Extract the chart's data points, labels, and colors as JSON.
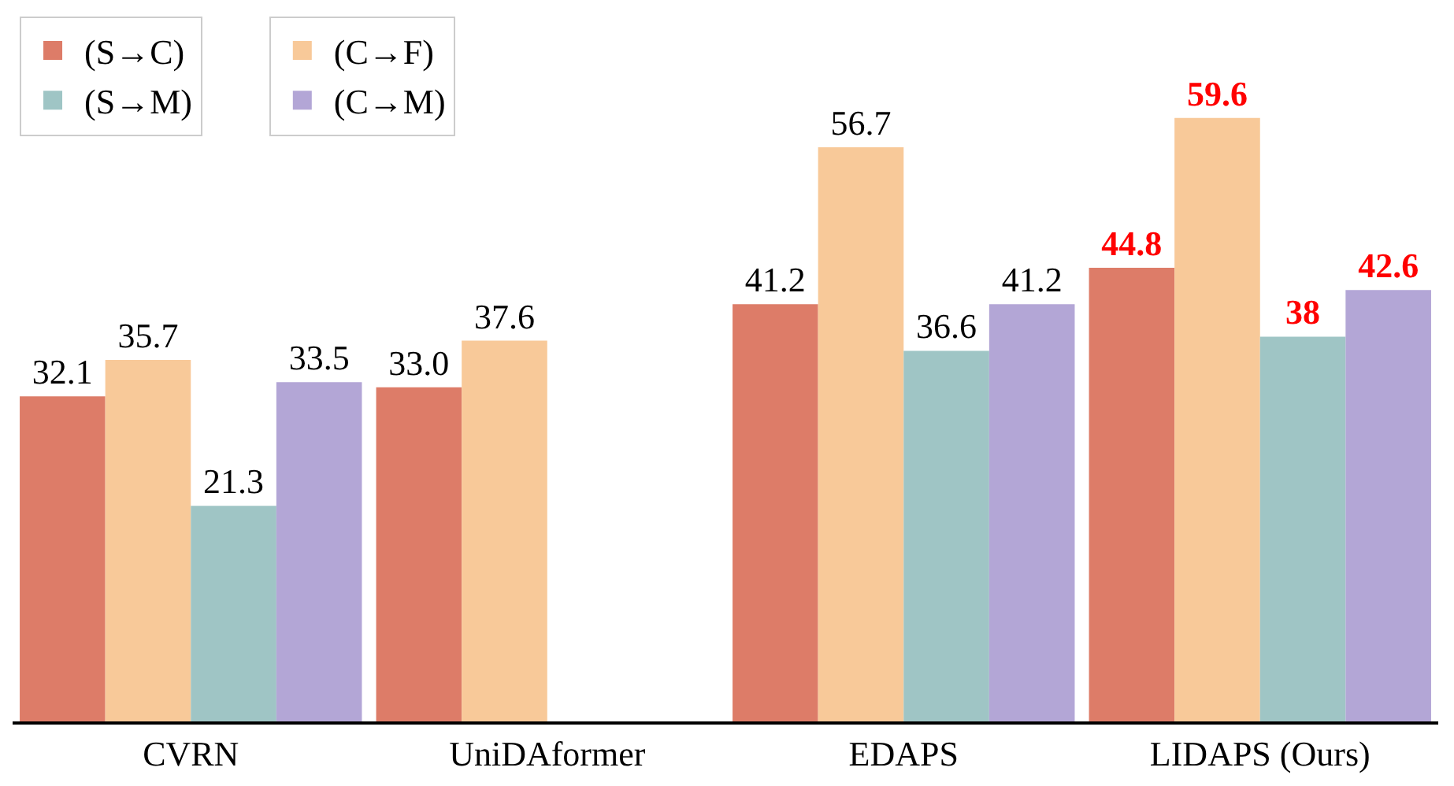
{
  "chart_data": {
    "type": "bar",
    "categories": [
      "CVRN",
      "UniDAformer",
      "EDAPS",
      "LIDAPS (Ours)"
    ],
    "series": [
      {
        "name": "(S→C)",
        "color": "#dd7c68",
        "values": [
          32.1,
          33.0,
          41.2,
          44.8
        ],
        "value_labels": [
          "32.1",
          "33.0",
          "41.2",
          "44.8"
        ]
      },
      {
        "name": "(C→F)",
        "color": "#f8c999",
        "values": [
          35.7,
          37.6,
          56.7,
          59.6
        ],
        "value_labels": [
          "35.7",
          "37.6",
          "56.7",
          "59.6"
        ]
      },
      {
        "name": "(S→M)",
        "color": "#9fc5c5",
        "values": [
          21.3,
          null,
          36.6,
          38
        ],
        "value_labels": [
          "21.3",
          null,
          "36.6",
          "38"
        ]
      },
      {
        "name": "(C→M)",
        "color": "#b3a6d6",
        "values": [
          33.5,
          null,
          41.2,
          42.6
        ],
        "value_labels": [
          "33.5",
          null,
          "41.2",
          "42.6"
        ]
      }
    ],
    "ylim": [
      0,
      70
    ],
    "legend": "top left"
  }
}
